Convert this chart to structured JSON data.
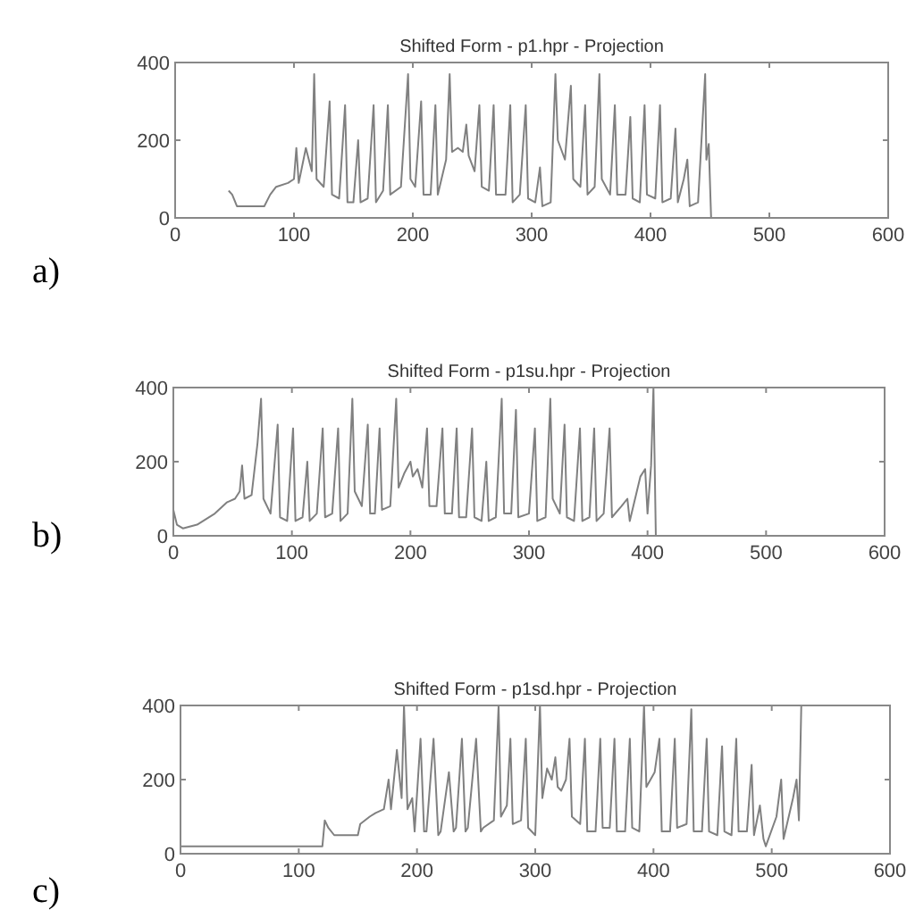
{
  "chart_data": [
    {
      "type": "line",
      "title": "Shifted Form - p1.hpr - Projection",
      "annotations": [
        "a)"
      ],
      "xlim": [
        0,
        600
      ],
      "ylim": [
        0,
        400
      ],
      "xticks": [
        0,
        100,
        200,
        300,
        400,
        500,
        600
      ],
      "yticks": [
        0,
        200,
        400
      ],
      "grid": false,
      "series": [
        {
          "color": "#808080",
          "x": [
            45,
            48,
            52,
            60,
            75,
            80,
            85,
            95,
            100,
            102,
            104,
            110,
            115,
            117,
            119,
            125,
            130,
            132,
            138,
            143,
            145,
            150,
            154,
            156,
            162,
            167,
            169,
            175,
            179,
            181,
            190,
            196,
            198,
            202,
            207,
            209,
            215,
            219,
            221,
            228,
            231,
            233,
            238,
            242,
            245,
            247,
            252,
            256,
            258,
            264,
            268,
            270,
            278,
            282,
            284,
            290,
            295,
            297,
            303,
            307,
            309,
            316,
            320,
            322,
            328,
            333,
            335,
            341,
            345,
            347,
            353,
            357,
            359,
            366,
            370,
            372,
            379,
            383,
            385,
            391,
            395,
            397,
            404,
            408,
            410,
            417,
            421,
            423,
            428,
            431,
            433,
            440,
            446,
            447,
            449,
            451
          ],
          "values": [
            70,
            60,
            30,
            30,
            30,
            60,
            80,
            90,
            100,
            180,
            90,
            180,
            120,
            370,
            100,
            80,
            300,
            60,
            50,
            290,
            40,
            40,
            200,
            40,
            50,
            290,
            40,
            70,
            290,
            60,
            80,
            370,
            100,
            80,
            300,
            60,
            60,
            290,
            60,
            150,
            370,
            170,
            180,
            170,
            240,
            160,
            120,
            290,
            80,
            70,
            290,
            60,
            60,
            290,
            40,
            60,
            290,
            50,
            40,
            130,
            30,
            40,
            370,
            200,
            150,
            340,
            100,
            80,
            290,
            60,
            80,
            370,
            100,
            60,
            290,
            60,
            60,
            260,
            50,
            40,
            290,
            60,
            50,
            290,
            40,
            50,
            230,
            40,
            100,
            150,
            30,
            40,
            370,
            150,
            190,
            0
          ]
        }
      ]
    },
    {
      "type": "line",
      "title": "Shifted Form - p1su.hpr - Projection",
      "annotations": [
        "b)"
      ],
      "xlim": [
        0,
        600
      ],
      "ylim": [
        0,
        400
      ],
      "xticks": [
        0,
        100,
        200,
        300,
        400,
        500,
        600
      ],
      "yticks": [
        0,
        200,
        400
      ],
      "grid": false,
      "series": [
        {
          "color": "#808080",
          "x": [
            0,
            3,
            8,
            20,
            35,
            45,
            52,
            56,
            58,
            60,
            66,
            71,
            74,
            76,
            82,
            88,
            90,
            96,
            101,
            103,
            109,
            113,
            115,
            121,
            126,
            128,
            134,
            139,
            141,
            147,
            151,
            153,
            159,
            164,
            166,
            170,
            174,
            176,
            183,
            188,
            190,
            195,
            200,
            202,
            206,
            210,
            214,
            216,
            222,
            227,
            229,
            235,
            239,
            241,
            247,
            252,
            254,
            260,
            264,
            266,
            272,
            277,
            279,
            285,
            289,
            291,
            300,
            305,
            307,
            314,
            318,
            320,
            326,
            330,
            332,
            338,
            343,
            345,
            351,
            355,
            357,
            363,
            368,
            370,
            378,
            383,
            385,
            394,
            398,
            400,
            403,
            405,
            407
          ],
          "values": [
            70,
            30,
            20,
            30,
            60,
            90,
            100,
            120,
            190,
            100,
            110,
            250,
            370,
            100,
            60,
            300,
            50,
            40,
            290,
            40,
            50,
            200,
            40,
            60,
            290,
            50,
            60,
            290,
            40,
            60,
            370,
            120,
            80,
            300,
            60,
            60,
            290,
            70,
            80,
            370,
            130,
            170,
            200,
            160,
            180,
            130,
            290,
            80,
            80,
            290,
            60,
            60,
            290,
            50,
            50,
            290,
            50,
            40,
            200,
            40,
            50,
            370,
            60,
            60,
            340,
            50,
            60,
            290,
            40,
            50,
            370,
            100,
            60,
            300,
            50,
            40,
            290,
            40,
            50,
            290,
            40,
            60,
            290,
            50,
            80,
            100,
            40,
            160,
            180,
            60,
            190,
            400,
            0
          ]
        }
      ]
    },
    {
      "type": "line",
      "title": "Shifted Form - p1sd.hpr - Projection",
      "annotations": [
        "c)"
      ],
      "xlim": [
        0,
        600
      ],
      "ylim": [
        0,
        400
      ],
      "xticks": [
        0,
        100,
        200,
        300,
        400,
        500,
        600
      ],
      "yticks": [
        0,
        200,
        400
      ],
      "grid": false,
      "series": [
        {
          "color": "#808080",
          "x": [
            0,
            120,
            122,
            125,
            130,
            150,
            152,
            160,
            165,
            172,
            176,
            178,
            183,
            187,
            189,
            192,
            196,
            198,
            203,
            206,
            208,
            214,
            218,
            220,
            227,
            231,
            233,
            238,
            241,
            243,
            250,
            254,
            256,
            265,
            269,
            271,
            276,
            279,
            281,
            288,
            292,
            294,
            300,
            304,
            306,
            310,
            314,
            317,
            319,
            322,
            326,
            329,
            331,
            338,
            342,
            344,
            351,
            355,
            357,
            363,
            367,
            369,
            376,
            380,
            382,
            388,
            392,
            394,
            401,
            405,
            407,
            414,
            418,
            420,
            428,
            432,
            434,
            441,
            445,
            447,
            454,
            458,
            460,
            466,
            470,
            472,
            479,
            483,
            485,
            490,
            493,
            495,
            504,
            508,
            510,
            518,
            521,
            523,
            525
          ],
          "values": [
            20,
            20,
            90,
            70,
            50,
            50,
            80,
            100,
            110,
            120,
            200,
            120,
            280,
            150,
            400,
            120,
            150,
            60,
            310,
            60,
            60,
            310,
            50,
            60,
            220,
            60,
            70,
            310,
            60,
            70,
            310,
            60,
            70,
            90,
            400,
            100,
            130,
            310,
            80,
            90,
            310,
            70,
            50,
            400,
            150,
            230,
            200,
            260,
            180,
            170,
            200,
            310,
            100,
            80,
            310,
            60,
            60,
            310,
            70,
            70,
            310,
            60,
            60,
            310,
            70,
            60,
            400,
            180,
            220,
            310,
            60,
            60,
            310,
            70,
            80,
            390,
            60,
            60,
            310,
            60,
            50,
            290,
            60,
            50,
            310,
            60,
            60,
            240,
            50,
            130,
            40,
            20,
            100,
            200,
            40,
            150,
            200,
            90,
            400
          ]
        }
      ]
    }
  ]
}
